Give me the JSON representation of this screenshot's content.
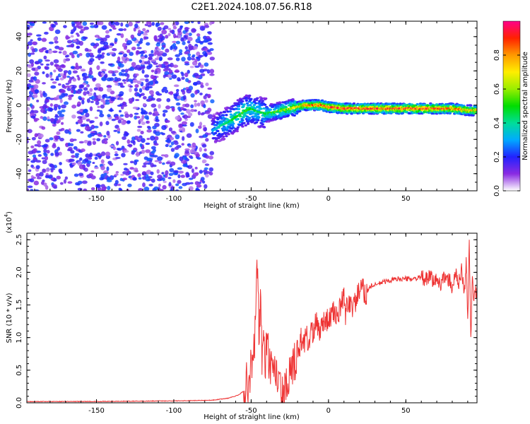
{
  "title": "C2E1.2024.108.07.56.R18",
  "chart_data": [
    {
      "type": "heatmap",
      "xlabel": "Height of straight line (km)",
      "ylabel": "Frequency (Hz)",
      "xlim": [
        -195,
        96
      ],
      "ylim": [
        -50,
        49
      ],
      "xticks": [
        -150,
        -100,
        -50,
        0,
        50
      ],
      "yticks": [
        -40,
        -20,
        0,
        20,
        40
      ],
      "colorbar": {
        "label": "Normalized spectral amplitude",
        "range": [
          0,
          1
        ],
        "ticks": [
          0.0,
          0.2,
          0.4,
          0.6,
          0.8
        ],
        "tick_labels": [
          "0.0",
          "0.2",
          "0.4",
          "0.6",
          "0.8"
        ]
      },
      "ridge": {
        "x": [
          -75,
          -70,
          -65,
          -60,
          -55,
          -50,
          -45,
          -40,
          -35,
          -30,
          -25,
          -20,
          -15,
          -10,
          -5,
          0,
          10,
          20,
          30,
          40,
          50,
          60,
          70,
          80,
          90,
          96
        ],
        "freq": [
          -15,
          -12,
          -10,
          -7,
          -4,
          -2,
          -4,
          -5,
          -4,
          -3,
          -2,
          -1,
          0,
          0,
          0,
          -1,
          -2,
          -2,
          -2,
          -2,
          -2,
          -2,
          -2,
          -2,
          -3,
          -3
        ],
        "amplitude": [
          0.3,
          0.4,
          0.45,
          0.5,
          0.55,
          0.5,
          0.45,
          0.5,
          0.55,
          0.6,
          0.65,
          0.75,
          0.85,
          0.9,
          0.9,
          0.95,
          0.95,
          0.95,
          0.95,
          0.95,
          0.95,
          0.95,
          0.95,
          0.9,
          0.85,
          0.8
        ]
      },
      "noise_region": {
        "x_range": [
          -195,
          -75
        ],
        "amplitude_range": [
          0.05,
          0.25
        ]
      }
    },
    {
      "type": "line",
      "xlabel": "Height of straight line (km)",
      "ylabel": "SNR (10 * v/v)",
      "scale_label": "(x10",
      "scale_exponent": "4",
      "scale_suffix": ")",
      "xlim": [
        -195,
        96
      ],
      "ylim": [
        0,
        2.6
      ],
      "xticks": [
        -150,
        -100,
        -50,
        0,
        50
      ],
      "yticks": [
        0.0,
        0.5,
        1.0,
        1.5,
        2.0,
        2.5
      ],
      "ytick_labels": [
        "0.0",
        "0.5",
        "1.0",
        "1.5",
        "2.0",
        "2.5"
      ],
      "color": "#ee3333",
      "series": [
        {
          "x": [
            -195,
            -150,
            -100,
            -75,
            -65,
            -58,
            -54,
            -52,
            -50,
            -48,
            -46,
            -45,
            -44,
            -43,
            -42,
            -41,
            -40,
            -38,
            -36,
            -34,
            -32,
            -30,
            -28,
            -27,
            -26,
            -25,
            -24,
            -22,
            -20,
            -19,
            -18,
            -16,
            -14,
            -13,
            -12,
            -11,
            -10,
            -8,
            -6,
            -4,
            -2,
            0,
            2,
            4,
            6,
            8,
            10,
            11,
            12,
            14,
            16,
            18,
            20,
            22,
            24,
            26,
            28,
            30,
            35,
            40,
            45,
            50,
            55,
            60,
            62,
            64,
            66,
            68,
            70,
            72,
            74,
            76,
            78,
            80,
            82,
            84,
            86,
            88,
            89,
            90,
            91,
            92,
            93,
            94,
            96
          ],
          "y": [
            0.02,
            0.02,
            0.03,
            0.04,
            0.07,
            0.12,
            0.2,
            0.35,
            0.5,
            0.8,
            2.15,
            1.1,
            1.5,
            0.7,
            1.2,
            0.5,
            0.9,
            0.6,
            0.35,
            0.5,
            0.25,
            0.08,
            0.12,
            0.3,
            0.2,
            0.45,
            0.35,
            0.6,
            0.85,
            0.65,
            1.0,
            0.9,
            1.1,
            0.8,
            1.05,
            1.15,
            1.0,
            1.25,
            1.1,
            1.2,
            1.3,
            1.25,
            1.35,
            1.4,
            1.3,
            1.5,
            1.6,
            1.35,
            1.5,
            1.55,
            1.45,
            1.6,
            1.7,
            1.75,
            1.65,
            1.75,
            1.8,
            1.8,
            1.85,
            1.88,
            1.9,
            1.9,
            1.9,
            1.92,
            1.9,
            1.88,
            1.95,
            1.85,
            1.9,
            1.8,
            1.95,
            1.85,
            1.9,
            1.75,
            2.0,
            1.8,
            2.05,
            1.7,
            2.2,
            1.2,
            2.5,
            0.95,
            1.9,
            1.6,
            1.75
          ]
        }
      ]
    }
  ]
}
